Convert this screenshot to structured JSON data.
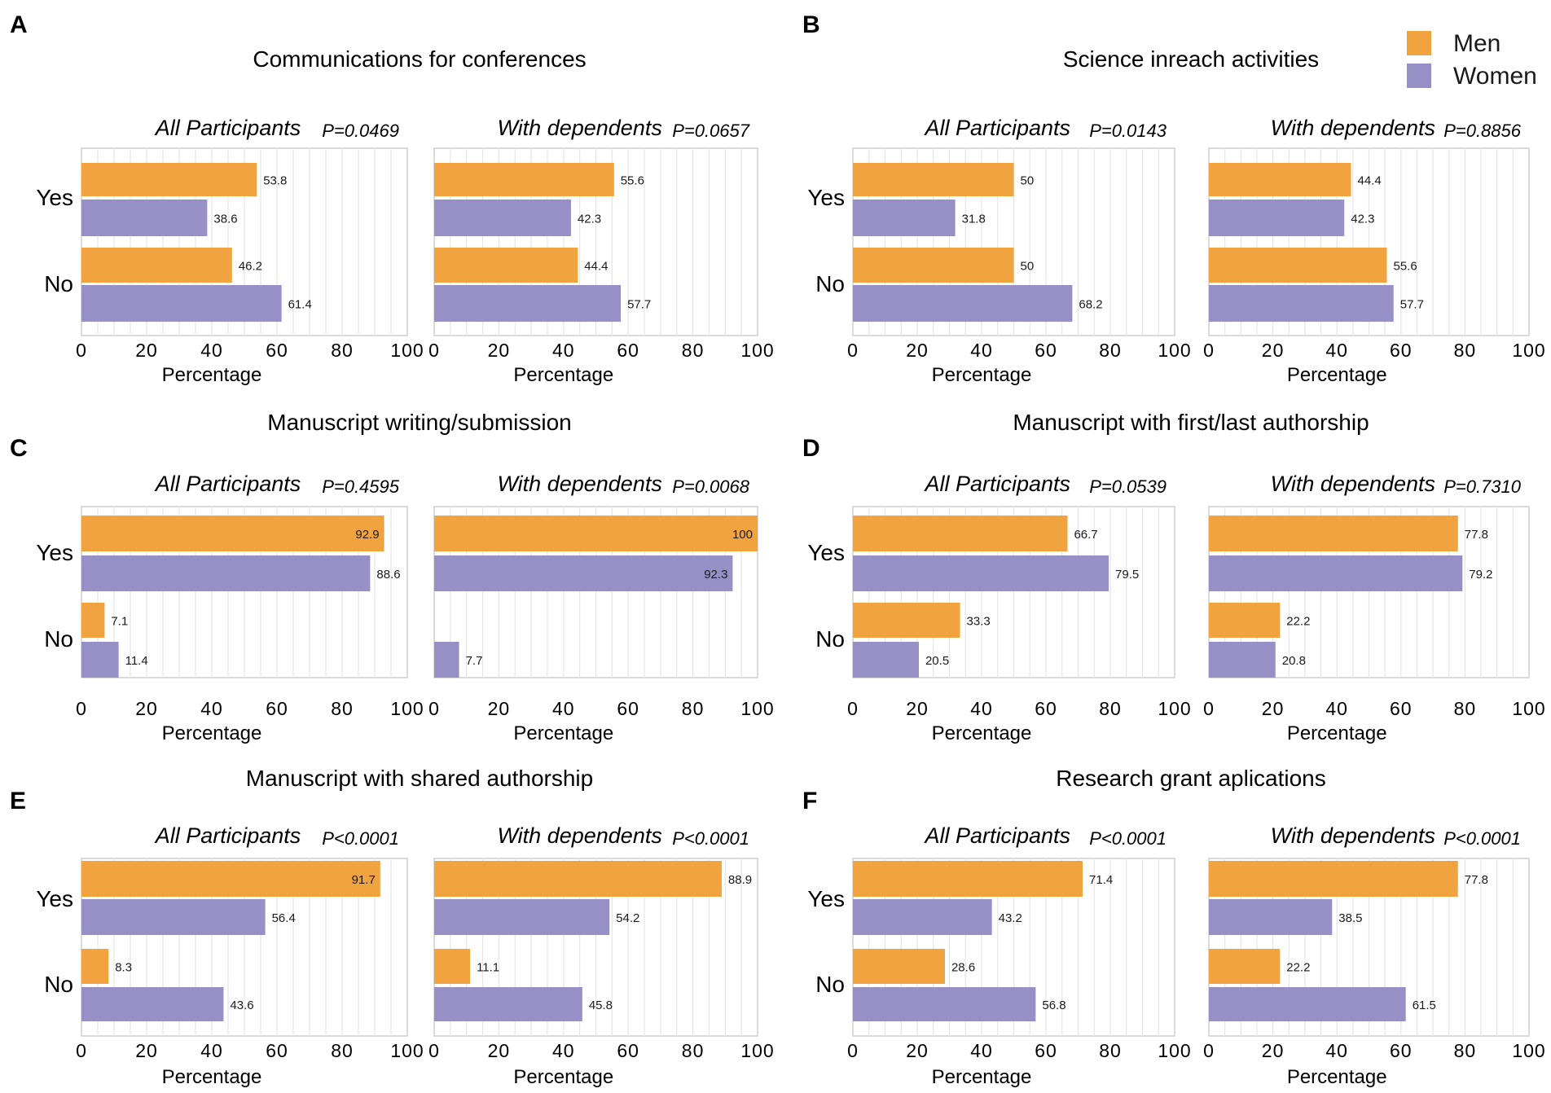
{
  "legend": {
    "entries": [
      {
        "name": "Men",
        "color": "#f0a33e"
      },
      {
        "name": "Women",
        "color": "#9790c6"
      }
    ]
  },
  "chart_data": [
    {
      "type": "bar",
      "orientation": "horizontal",
      "panel": "A",
      "title": "Communications for conferences",
      "categories": [
        "Yes",
        "No"
      ],
      "subplots": [
        {
          "subtitle": "All Participants",
          "pvalue": "P=0.0469",
          "series": [
            {
              "name": "Men",
              "values": [
                53.8,
                46.2
              ]
            },
            {
              "name": "Women",
              "values": [
                38.6,
                61.4
              ]
            }
          ],
          "xlabel": "Percentage",
          "xlim": [
            0,
            100
          ],
          "xticks": [
            "0",
            "20",
            "40",
            "60",
            "80",
            "100"
          ]
        },
        {
          "subtitle": "With dependents",
          "pvalue": "P=0.0657",
          "series": [
            {
              "name": "Men",
              "values": [
                55.6,
                44.4
              ]
            },
            {
              "name": "Women",
              "values": [
                42.3,
                57.7
              ]
            }
          ],
          "xlabel": "Percentage",
          "xlim": [
            0,
            100
          ],
          "xticks": [
            "0",
            "20",
            "40",
            "60",
            "80",
            "100"
          ]
        }
      ]
    },
    {
      "type": "bar",
      "orientation": "horizontal",
      "panel": "B",
      "title": "Science inreach activities",
      "categories": [
        "Yes",
        "No"
      ],
      "subplots": [
        {
          "subtitle": "All Participants",
          "pvalue": "P=0.0143",
          "series": [
            {
              "name": "Men",
              "values": [
                50,
                50
              ]
            },
            {
              "name": "Women",
              "values": [
                31.8,
                68.2
              ]
            }
          ],
          "xlabel": "Percentage",
          "xlim": [
            0,
            100
          ],
          "xticks": [
            "0",
            "20",
            "40",
            "60",
            "80",
            "100"
          ]
        },
        {
          "subtitle": "With dependents",
          "pvalue": "P=0.8856",
          "series": [
            {
              "name": "Men",
              "values": [
                44.4,
                55.6
              ]
            },
            {
              "name": "Women",
              "values": [
                42.3,
                57.7
              ]
            }
          ],
          "xlabel": "Percentage",
          "xlim": [
            0,
            100
          ],
          "xticks": [
            "0",
            "20",
            "40",
            "60",
            "80",
            "100"
          ]
        }
      ]
    },
    {
      "type": "bar",
      "orientation": "horizontal",
      "panel": "C",
      "title": "Manuscript writing/submission",
      "categories": [
        "Yes",
        "No"
      ],
      "subplots": [
        {
          "subtitle": "All Participants",
          "pvalue": "P=0.4595",
          "series": [
            {
              "name": "Men",
              "values": [
                92.9,
                7.1
              ]
            },
            {
              "name": "Women",
              "values": [
                88.6,
                11.4
              ]
            }
          ],
          "xlabel": "Percentage",
          "xlim": [
            0,
            100
          ],
          "xticks": [
            "0",
            "20",
            "40",
            "60",
            "80",
            "100"
          ]
        },
        {
          "subtitle": "With dependents",
          "pvalue": "P=0.0068",
          "series": [
            {
              "name": "Men",
              "values": [
                100,
                null
              ]
            },
            {
              "name": "Women",
              "values": [
                92.3,
                7.7
              ]
            }
          ],
          "xlabel": "Percentage",
          "xlim": [
            0,
            100
          ],
          "xticks": [
            "0",
            "20",
            "40",
            "60",
            "80",
            "100"
          ]
        }
      ]
    },
    {
      "type": "bar",
      "orientation": "horizontal",
      "panel": "D",
      "title": "Manuscript with first/last authorship",
      "categories": [
        "Yes",
        "No"
      ],
      "subplots": [
        {
          "subtitle": "All Participants",
          "pvalue": "P=0.0539",
          "series": [
            {
              "name": "Men",
              "values": [
                66.7,
                33.3
              ]
            },
            {
              "name": "Women",
              "values": [
                79.5,
                20.5
              ]
            }
          ],
          "xlabel": "Percentage",
          "xlim": [
            0,
            100
          ],
          "xticks": [
            "0",
            "20",
            "40",
            "60",
            "80",
            "100"
          ]
        },
        {
          "subtitle": "With dependents",
          "pvalue": "P=0.7310",
          "series": [
            {
              "name": "Men",
              "values": [
                77.8,
                22.2
              ]
            },
            {
              "name": "Women",
              "values": [
                79.2,
                20.8
              ]
            }
          ],
          "xlabel": "Percentage",
          "xlim": [
            0,
            100
          ],
          "xticks": [
            "0",
            "20",
            "40",
            "60",
            "80",
            "100"
          ]
        }
      ]
    },
    {
      "type": "bar",
      "orientation": "horizontal",
      "panel": "E",
      "title": "Manuscript with shared authorship",
      "categories": [
        "Yes",
        "No"
      ],
      "subplots": [
        {
          "subtitle": "All Participants",
          "pvalue": "P<0.0001",
          "series": [
            {
              "name": "Men",
              "values": [
                91.7,
                8.3
              ]
            },
            {
              "name": "Women",
              "values": [
                56.4,
                43.6
              ]
            }
          ],
          "xlabel": "Percentage",
          "xlim": [
            0,
            100
          ],
          "xticks": [
            "0",
            "20",
            "40",
            "60",
            "80",
            "100"
          ]
        },
        {
          "subtitle": "With dependents",
          "pvalue": "P<0.0001",
          "series": [
            {
              "name": "Men",
              "values": [
                88.9,
                11.1
              ]
            },
            {
              "name": "Women",
              "values": [
                54.2,
                45.8
              ]
            }
          ],
          "xlabel": "Percentage",
          "xlim": [
            0,
            100
          ],
          "xticks": [
            "0",
            "20",
            "40",
            "60",
            "80",
            "100"
          ]
        }
      ]
    },
    {
      "type": "bar",
      "orientation": "horizontal",
      "panel": "F",
      "title": "Research grant aplications",
      "categories": [
        "Yes",
        "No"
      ],
      "subplots": [
        {
          "subtitle": "All Participants",
          "pvalue": "P<0.0001",
          "series": [
            {
              "name": "Men",
              "values": [
                71.4,
                28.6
              ]
            },
            {
              "name": "Women",
              "values": [
                43.2,
                56.8
              ]
            }
          ],
          "xlabel": "Percentage",
          "xlim": [
            0,
            100
          ],
          "xticks": [
            "0",
            "20",
            "40",
            "60",
            "80",
            "100"
          ]
        },
        {
          "subtitle": "With dependents",
          "pvalue": "P<0.0001",
          "series": [
            {
              "name": "Men",
              "values": [
                77.8,
                22.2
              ]
            },
            {
              "name": "Women",
              "values": [
                38.5,
                61.5
              ]
            }
          ],
          "xlabel": "Percentage",
          "xlim": [
            0,
            100
          ],
          "xticks": [
            "0",
            "20",
            "40",
            "60",
            "80",
            "100"
          ]
        }
      ]
    }
  ]
}
